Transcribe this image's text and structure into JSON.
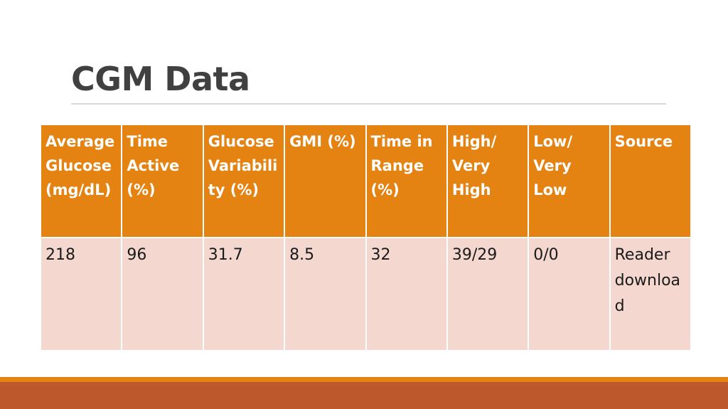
{
  "header": {
    "title": "CGM Data"
  },
  "table": {
    "columns": [
      "Average Glucose (mg/dL)",
      "Time Active (%)",
      "Glucose Variability (%)",
      "GMI (%)",
      "Time in Range (%)",
      "High/ Very High",
      "Low/ Very Low",
      "Source"
    ],
    "rows": [
      [
        "218",
        "96",
        "31.7",
        "8.5",
        "32",
        "39/29",
        "0/0",
        "Reader download"
      ]
    ]
  }
}
